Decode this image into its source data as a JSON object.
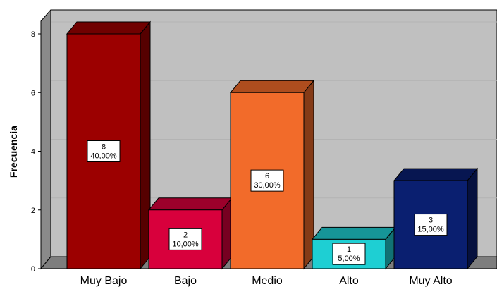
{
  "chart_data": {
    "type": "bar",
    "title": "",
    "xlabel": "",
    "ylabel": "Frecuencia",
    "categories": [
      "Muy Bajo",
      "Bajo",
      "Medio",
      "Alto",
      "Muy Alto"
    ],
    "values": [
      8,
      2,
      6,
      1,
      3
    ],
    "percent_labels": [
      "40,00%",
      "10,00%",
      "30,00%",
      "5,00%",
      "15,00%"
    ],
    "colors": [
      "#9c0000",
      "#d8003c",
      "#f26b2a",
      "#1ecfd3",
      "#0a1f70"
    ],
    "y_ticks": [
      "0",
      "2",
      "4",
      "6",
      "8"
    ],
    "ylim": [
      0,
      8
    ],
    "grid": true,
    "legend": "none",
    "style": "3d"
  }
}
